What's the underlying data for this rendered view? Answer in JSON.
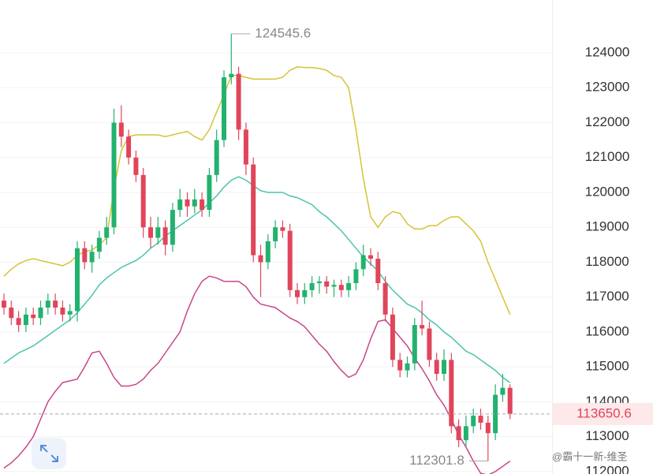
{
  "chart_data": {
    "type": "candlestick",
    "ylim": [
      111930,
      125515
    ],
    "yticks": [
      112000,
      113000,
      114000,
      115000,
      116000,
      117000,
      118000,
      119000,
      120000,
      121000,
      122000,
      123000,
      124000
    ],
    "grid": true,
    "up_color": "#22b26e",
    "down_color": "#e0455a",
    "ohlc": [
      [
        116900,
        117100,
        116500,
        116700
      ],
      [
        116700,
        116900,
        116200,
        116400
      ],
      [
        116400,
        116600,
        116000,
        116200
      ],
      [
        116200,
        116700,
        116000,
        116500
      ],
      [
        116500,
        116700,
        116200,
        116400
      ],
      [
        116400,
        116900,
        116200,
        116700
      ],
      [
        116700,
        117100,
        116500,
        116900
      ],
      [
        116900,
        117100,
        116500,
        116700
      ],
      [
        116700,
        116900,
        116300,
        116500
      ],
      [
        116500,
        116800,
        116300,
        116600
      ],
      [
        116600,
        118600,
        116300,
        118400
      ],
      [
        118400,
        118600,
        117800,
        118000
      ],
      [
        118000,
        118500,
        117700,
        118300
      ],
      [
        118300,
        118900,
        118100,
        118700
      ],
      [
        118700,
        119300,
        118500,
        119000
      ],
      [
        119000,
        122400,
        118800,
        122000
      ],
      [
        122000,
        122500,
        121300,
        121600
      ],
      [
        121600,
        121800,
        120800,
        121000
      ],
      [
        121000,
        121200,
        120300,
        120500
      ],
      [
        120500,
        120700,
        118700,
        119000
      ],
      [
        119000,
        119300,
        118400,
        118700
      ],
      [
        118700,
        119300,
        118500,
        119000
      ],
      [
        119000,
        119200,
        118200,
        118500
      ],
      [
        118500,
        119700,
        118300,
        119500
      ],
      [
        119500,
        120100,
        119300,
        119800
      ],
      [
        119800,
        120000,
        119300,
        119600
      ],
      [
        119600,
        120100,
        119400,
        119800
      ],
      [
        119800,
        120000,
        119300,
        119500
      ],
      [
        119500,
        120700,
        119300,
        120500
      ],
      [
        120500,
        121800,
        120300,
        121500
      ],
      [
        121500,
        123500,
        121300,
        123300
      ],
      [
        123300,
        124545.6,
        123100,
        123400
      ],
      [
        123400,
        123600,
        121500,
        121800
      ],
      [
        121800,
        122000,
        120500,
        120800
      ],
      [
        120800,
        121000,
        118000,
        118200
      ],
      [
        118200,
        118500,
        117000,
        118000
      ],
      [
        118000,
        118800,
        117800,
        118600
      ],
      [
        118600,
        119200,
        118400,
        119000
      ],
      [
        119000,
        119200,
        118700,
        118900
      ],
      [
        118900,
        119100,
        117000,
        117200
      ],
      [
        117200,
        117400,
        116800,
        117000
      ],
      [
        117000,
        117400,
        116800,
        117200
      ],
      [
        117200,
        117600,
        117000,
        117400
      ],
      [
        117400,
        117600,
        117100,
        117450
      ],
      [
        117450,
        117600,
        117100,
        117300
      ],
      [
        117300,
        117500,
        117000,
        117350
      ],
      [
        117350,
        117500,
        117000,
        117200
      ],
      [
        117200,
        117600,
        117000,
        117400
      ],
      [
        117400,
        118000,
        117200,
        117800
      ],
      [
        117800,
        118500,
        117600,
        118200
      ],
      [
        118200,
        118400,
        117900,
        118100
      ],
      [
        118100,
        118300,
        117200,
        117400
      ],
      [
        117400,
        117600,
        116300,
        116500
      ],
      [
        116500,
        116700,
        115000,
        115200
      ],
      [
        115200,
        115400,
        114700,
        114900
      ],
      [
        114900,
        115300,
        114700,
        115100
      ],
      [
        115100,
        116400,
        114900,
        116200
      ],
      [
        116200,
        116900,
        115900,
        116100
      ],
      [
        116100,
        116300,
        115000,
        115200
      ],
      [
        115200,
        115400,
        114600,
        114800
      ],
      [
        114800,
        115500,
        114600,
        115200
      ],
      [
        115200,
        115400,
        113100,
        113300
      ],
      [
        113300,
        113500,
        112700,
        112900
      ],
      [
        112900,
        113600,
        112700,
        113300
      ],
      [
        113300,
        113800,
        113100,
        113600
      ],
      [
        113600,
        113800,
        113200,
        113400
      ],
      [
        113400,
        113600,
        112301.8,
        113100
      ],
      [
        113100,
        114500,
        112900,
        114200
      ],
      [
        114200,
        114800,
        114000,
        114400
      ],
      [
        114400,
        114500,
        113500,
        113650.6
      ]
    ],
    "bands": [
      {
        "color": "#d6c337",
        "values": [
          117600,
          117800,
          117950,
          118050,
          118100,
          118050,
          118000,
          117950,
          117900,
          118000,
          118200,
          118300,
          118350,
          118500,
          118700,
          120100,
          121200,
          121600,
          121650,
          121650,
          121650,
          121650,
          121600,
          121650,
          121700,
          121750,
          121600,
          121500,
          121800,
          122300,
          122800,
          123350,
          123350,
          123300,
          123250,
          123250,
          123250,
          123250,
          123300,
          123500,
          123600,
          123580,
          123580,
          123550,
          123500,
          123350,
          123300,
          123000,
          121800,
          120400,
          119300,
          119000,
          119300,
          119450,
          119400,
          119100,
          118950,
          118950,
          119050,
          119050,
          119200,
          119300,
          119300,
          119100,
          118900,
          118600,
          118000,
          117500,
          117000,
          116500
        ]
      },
      {
        "color": "#4cc3ad",
        "values": [
          115100,
          115250,
          115400,
          115500,
          115600,
          115750,
          115900,
          116050,
          116200,
          116350,
          116550,
          116800,
          117050,
          117350,
          117550,
          117700,
          117850,
          117950,
          118050,
          118200,
          118400,
          118550,
          118750,
          118900,
          119050,
          119200,
          119350,
          119500,
          119700,
          119900,
          120150,
          120350,
          120450,
          120350,
          120200,
          120050,
          120000,
          120000,
          120000,
          119900,
          119850,
          119750,
          119650,
          119450,
          119300,
          119100,
          118900,
          118650,
          118400,
          118150,
          117950,
          117750,
          117450,
          117200,
          117000,
          116800,
          116700,
          116550,
          116350,
          116200,
          116000,
          115850,
          115650,
          115450,
          115350,
          115200,
          115050,
          114900,
          114700,
          114550
        ]
      },
      {
        "color": "#c8468a",
        "values": [
          112100,
          112250,
          112450,
          112700,
          113000,
          113500,
          114000,
          114300,
          114550,
          114600,
          114650,
          115000,
          115400,
          115450,
          115100,
          114700,
          114450,
          114450,
          114500,
          114650,
          114900,
          115100,
          115400,
          115700,
          116000,
          116600,
          117100,
          117450,
          117600,
          117550,
          117450,
          117450,
          117450,
          117300,
          117000,
          116800,
          116750,
          116700,
          116550,
          116400,
          116300,
          116150,
          115900,
          115650,
          115450,
          115150,
          114900,
          114700,
          114800,
          115200,
          115800,
          116300,
          116350,
          116100,
          115850,
          115600,
          115250,
          114950,
          114600,
          114200,
          113900,
          113500,
          113050,
          112700,
          112300,
          111950,
          111900,
          112000,
          112150,
          112300
        ]
      }
    ],
    "high_index": 31,
    "low_index": 66,
    "watermark": "@霸十一新-维圣"
  }
}
